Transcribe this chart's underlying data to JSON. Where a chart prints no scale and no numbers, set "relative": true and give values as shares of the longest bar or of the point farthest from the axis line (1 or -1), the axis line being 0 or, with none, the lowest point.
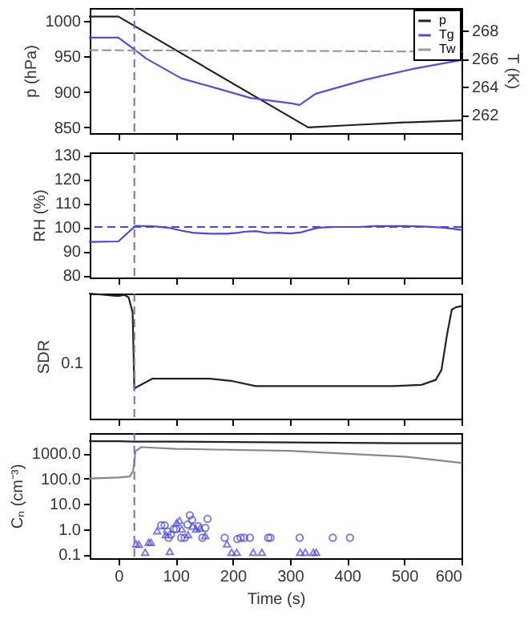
{
  "chart_data": [
    {
      "type": "line",
      "ylabel": "p (hPa)",
      "y2label": "T (K)",
      "xlim": [
        -50,
        600
      ],
      "xticks": [
        0,
        100,
        200,
        300,
        400,
        500,
        600
      ],
      "ylim": [
        842,
        1018
      ],
      "yticks": [
        850,
        900,
        950,
        1000
      ],
      "y2lim": [
        260.7,
        269.6
      ],
      "y2ticks": [
        262,
        264,
        266,
        268
      ],
      "tick_labels": "y",
      "legend": "top right",
      "series": [
        {
          "name": "p",
          "color": "#222222",
          "x": [
            -50,
            0,
            332,
            400,
            500,
            600
          ],
          "values": [
            1006,
            1006,
            850,
            853,
            857,
            860
          ]
        },
        {
          "name": "Tg",
          "color": "#5050e0",
          "axis": "y2",
          "x": [
            -50,
            0,
            30,
            49,
            110,
            171,
            231,
            305,
            317,
            345,
            432,
            519,
            600
          ],
          "values": [
            267.5,
            267.5,
            266.6,
            266.0,
            264.6,
            263.9,
            263.2,
            262.8,
            262.7,
            263.5,
            264.5,
            265.3,
            265.9
          ]
        },
        {
          "name": "Tw",
          "color": "#999999",
          "axis": "y2",
          "line_style": "dashed",
          "x": [
            -50,
            600
          ],
          "values": [
            266.6,
            266.5
          ]
        }
      ],
      "ref_lines": [
        {
          "axis": "x",
          "value": 28,
          "color": "#6a6ae6",
          "line_style": "dashed"
        }
      ]
    },
    {
      "type": "line",
      "ylabel": "RH (%)",
      "xlim": [
        -50,
        600
      ],
      "xticks": [
        0,
        100,
        200,
        300,
        400,
        500,
        600
      ],
      "ylim": [
        79,
        131
      ],
      "yticks": [
        80,
        90,
        100,
        110,
        120,
        130
      ],
      "tick_labels": "y",
      "series": [
        {
          "color": "#4848e0",
          "x": [
            -50,
            0,
            30,
            60,
            90,
            110,
            130,
            160,
            190,
            210,
            220,
            240,
            260,
            280,
            300,
            320,
            330,
            350,
            380,
            420,
            450,
            500,
            540,
            570,
            600
          ],
          "values": [
            93.8,
            94,
            100.5,
            100.3,
            99.6,
            98.5,
            97.6,
            97.2,
            97.2,
            97.6,
            98,
            98.3,
            97.5,
            97.6,
            97.3,
            97.8,
            98.5,
            99.7,
            100,
            100,
            100.4,
            100.4,
            100.1,
            99.7,
            98.8
          ]
        }
      ],
      "ref_lines": [
        {
          "axis": "x",
          "value": 28,
          "color": "#6a6ae6",
          "line_style": "dashed"
        },
        {
          "axis": "y",
          "value": 100,
          "color": "#4848e0",
          "line_style": "dashed"
        }
      ]
    },
    {
      "type": "line",
      "ylabel": "SDR",
      "relative": true,
      "xlim": [
        -50,
        600
      ],
      "xticks": [
        0,
        100,
        200,
        300,
        400,
        500,
        600
      ],
      "tick_labels": "y",
      "annotations": [
        "0.1"
      ],
      "series": [
        {
          "color": "#222222",
          "x": [
            -50,
            0,
            10,
            18,
            25,
            28,
            35,
            60,
            100,
            160,
            200,
            240,
            300,
            400,
            480,
            530,
            555,
            565,
            575,
            583,
            590,
            600
          ],
          "values": [
            1.0,
            0.98,
            0.99,
            0.97,
            0.85,
            0.24,
            0.26,
            0.32,
            0.32,
            0.32,
            0.3,
            0.26,
            0.26,
            0.26,
            0.26,
            0.27,
            0.31,
            0.39,
            0.68,
            0.87,
            0.89,
            0.9
          ]
        }
      ],
      "ref_lines": [
        {
          "axis": "x",
          "value": 28,
          "color": "#6a6ae6",
          "line_style": "dashed"
        }
      ]
    },
    {
      "type": "line",
      "ylabel": "Cₙ (cm⁻³)",
      "xlabel": "Time (s)",
      "log": true,
      "xlim": [
        -50,
        600
      ],
      "xticks": [
        0,
        100,
        200,
        300,
        400,
        500,
        600
      ],
      "ylim": [
        0.07,
        6300
      ],
      "yticks": [
        {
          "value": 0.1,
          "label": "0.1"
        },
        {
          "value": 1,
          "label": "1.0"
        },
        {
          "value": 10,
          "label": "10.0"
        },
        {
          "value": 100,
          "label": "100.0"
        },
        {
          "value": 1000,
          "label": "1000.0"
        }
      ],
      "series": [
        {
          "color": "#222222",
          "x": [
            -50,
            0,
            28,
            100,
            300,
            500,
            600
          ],
          "values": [
            3000,
            3000,
            2900,
            2900,
            2700,
            2500,
            2500
          ]
        },
        {
          "color": "#888888",
          "x": [
            -50,
            0,
            20,
            26,
            30,
            40,
            100,
            300,
            500,
            600
          ],
          "values": [
            100,
            110,
            120,
            200,
            1200,
            1750,
            1500,
            1250,
            740,
            420
          ]
        },
        {
          "type": "scatter",
          "marker": "circle",
          "color": "#4848e0",
          "x": [
            75,
            81,
            86,
            88,
            92,
            97,
            101,
            110,
            116,
            121,
            125,
            129,
            140,
            147,
            152,
            156,
            186,
            208,
            214,
            220,
            230,
            262,
            266,
            317,
            375,
            405
          ],
          "values": [
            1.4,
            1.4,
            0.8,
            0.45,
            0.6,
            1.0,
            1.0,
            0.45,
            0.45,
            1.5,
            3.5,
            2.3,
            1.3,
            0.45,
            1.1,
            2.5,
            0.45,
            0.4,
            0.45,
            0.45,
            0.45,
            0.45,
            0.45,
            0.45,
            0.45,
            0.45
          ]
        },
        {
          "type": "scatter",
          "marker": "triangle",
          "color": "#4848e0",
          "x": [
            31,
            36,
            47,
            53,
            57,
            68,
            83,
            90,
            102,
            107,
            111,
            122,
            130,
            136,
            143,
            152,
            190,
            198,
            207,
            236,
            251,
            318,
            327,
            341,
            346
          ],
          "values": [
            0.26,
            0.25,
            0.12,
            0.3,
            0.3,
            0.85,
            0.6,
            0.13,
            1.8,
            2.2,
            1.0,
            0.6,
            1.3,
            1.0,
            1.1,
            0.55,
            0.26,
            0.12,
            0.12,
            0.12,
            0.12,
            0.12,
            0.12,
            0.12,
            0.12
          ]
        }
      ],
      "ref_lines": [
        {
          "axis": "x",
          "value": 28,
          "color": "#6a6ae6",
          "line_style": "dashed"
        }
      ]
    }
  ]
}
